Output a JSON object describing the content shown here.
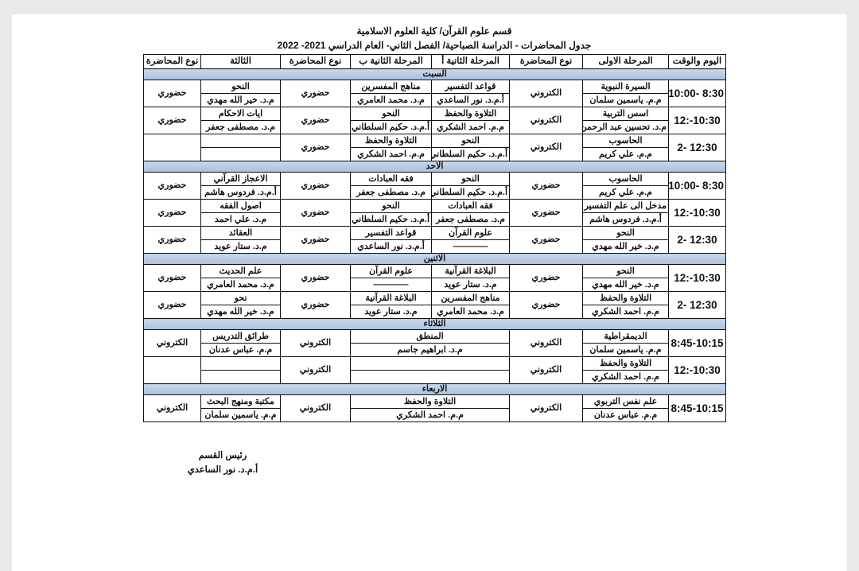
{
  "header": {
    "line1": "قسم علوم القرآن/ كلية العلوم الاسلامية",
    "line2": "جدول المحاضرات - الدراسة الصباحية/ الفصل الثاني- العام الدراسي 2021- 2022"
  },
  "columns": [
    "اليوم والوقت",
    "المرحلة الاولى",
    "نوع المحاضرة",
    "المرحلة الثانية أ",
    "المرحلة الثانية ب",
    "نوع المحاضرة",
    "الثالثة",
    "نوع المحاضرة"
  ],
  "days": [
    {
      "name": "السبت",
      "slots": [
        {
          "time": "8:30 -10:00",
          "s1": [
            "السيرة النبوية",
            "م.م. ياسمين سلمان"
          ],
          "t1": "الكتروني",
          "s2a": [
            "قواعد التفسير",
            "أ.م.د. نور الساعدي"
          ],
          "s2b": [
            "مناهج المفسرين",
            "م.د. محمد العامري"
          ],
          "t2": "حضوري",
          "s3": [
            "النحو",
            "م.د. خير الله مهدي"
          ],
          "t3": "حضوري"
        },
        {
          "time": "10:30-:12",
          "s1": [
            "اسس التربية",
            "م.د. تحسين عبد الرحمن"
          ],
          "t1": "الكتروني",
          "s2a": [
            "التلاوة والحفظ",
            "م.م. احمد الشكري"
          ],
          "s2b": [
            "النحو",
            "أ.م.د. حكيم السلطاني"
          ],
          "t2": "حضوري",
          "s3": [
            "ايات الاحكام",
            "م.د. مصطفى جعفر"
          ],
          "t3": "حضوري"
        },
        {
          "time": "12:30 -2",
          "s1": [
            "الحاسوب",
            "م.م. علي كريم"
          ],
          "t1": "الكتروني",
          "s2a": [
            "النحو",
            "أ.م.د. حكيم السلطاني"
          ],
          "s2b": [
            "التلاوة والحفظ",
            "م.م. احمد الشكري"
          ],
          "t2": "حضوري",
          "s3": [
            "",
            ""
          ],
          "t3": ""
        }
      ]
    },
    {
      "name": "الاحد",
      "slots": [
        {
          "time": "8:30 -10:00",
          "s1": [
            "الحاسوب",
            "م.م. علي كريم"
          ],
          "t1": "حضوري",
          "s2a": [
            "النحو",
            "أ.م.د. حكيم السلطاني"
          ],
          "s2b": [
            "فقه العبادات",
            "م.د. مصطفى جعفر"
          ],
          "t2": "حضوري",
          "s3": [
            "الاعجاز القرآني",
            "أ.م.د. فردوس هاشم"
          ],
          "t3": "حضوري"
        },
        {
          "time": "10:30-:12",
          "s1": [
            "مدخل الى علم التفسير",
            "أ.م.د. فردوس هاشم"
          ],
          "t1": "حضوري",
          "s2a": [
            "فقه العبادات",
            "م.د. مصطفى جعفر"
          ],
          "s2b": [
            "النحو",
            "أ.م.د. حكيم السلطاني"
          ],
          "t2": "حضوري",
          "s3": [
            "اصول الفقه",
            "م.د. علي احمد"
          ],
          "t3": "حضوري"
        },
        {
          "time": "12:30 -2",
          "s1": [
            "النحو",
            "م.د. خير الله مهدي"
          ],
          "t1": "حضوري",
          "s2a": [
            "علوم القرآن",
            "————"
          ],
          "s2b": [
            "قواعد التفسير",
            "أ.م.د. نور الساعدي"
          ],
          "t2": "حضوري",
          "s3": [
            "العقائد",
            "م.د. ستار عويد"
          ],
          "t3": "حضوري"
        }
      ]
    },
    {
      "name": "الاثنين",
      "slots": [
        {
          "time": "10:30-:12",
          "s1": [
            "النحو",
            "م.د. خير الله مهدي"
          ],
          "t1": "حضوري",
          "s2a": [
            "البلاغة القرآنية",
            "م.د. ستار عويد"
          ],
          "s2b": [
            "علوم القرآن",
            "————"
          ],
          "t2": "حضوري",
          "s3": [
            "علم الحديث",
            "م.د. محمد العامري"
          ],
          "t3": "حضوري"
        },
        {
          "time": "12:30 -2",
          "s1": [
            "التلاوة والحفظ",
            "م.م. احمد الشكري"
          ],
          "t1": "حضوري",
          "s2a": [
            "مناهج المفسرين",
            "م.د. محمد العامري"
          ],
          "s2b": [
            "البلاغة القرآنية",
            "م.د. ستار عويد"
          ],
          "t2": "حضوري",
          "s3": [
            "نحو",
            "م.د. خير الله مهدي"
          ],
          "t3": "حضوري"
        }
      ]
    },
    {
      "name": "الثلاثاء",
      "slots": [
        {
          "time": "8:45-10:15",
          "s1": [
            "الديمقراطية",
            "م.م. ياسمين سلمان"
          ],
          "t1": "الكتروني",
          "s2": [
            "المنطق",
            "م.د. ابراهيم جاسم"
          ],
          "t2": "الكتروني",
          "s3": [
            "طرائق التدريس",
            "م.م. عباس عدنان"
          ],
          "t3": "الكتروني"
        },
        {
          "time": "10:30-:12",
          "s1": [
            "التلاوة والحفظ",
            "م.م. احمد الشكري"
          ],
          "t1": "الكتروني",
          "s2": [
            "",
            ""
          ],
          "t2": "الكتروني",
          "s3": [
            "",
            ""
          ],
          "t3": ""
        }
      ]
    },
    {
      "name": "الاربعاء",
      "slots": [
        {
          "time": "8:45-10:15",
          "s1": [
            "علم نفس التربوي",
            "م.م. عباس عدنان"
          ],
          "t1": "الكتروني",
          "s2": [
            "التلاوة والحفظ",
            "م.م. احمد الشكري"
          ],
          "t2": "الكتروني",
          "s3": [
            "مكتبة ومنهج البحث",
            "م.م. ياسمين سلمان"
          ],
          "t3": "الكتروني"
        }
      ]
    }
  ],
  "signature": {
    "title": "رئيس القسم",
    "name": "أ.م.د. نور الساعدي"
  }
}
